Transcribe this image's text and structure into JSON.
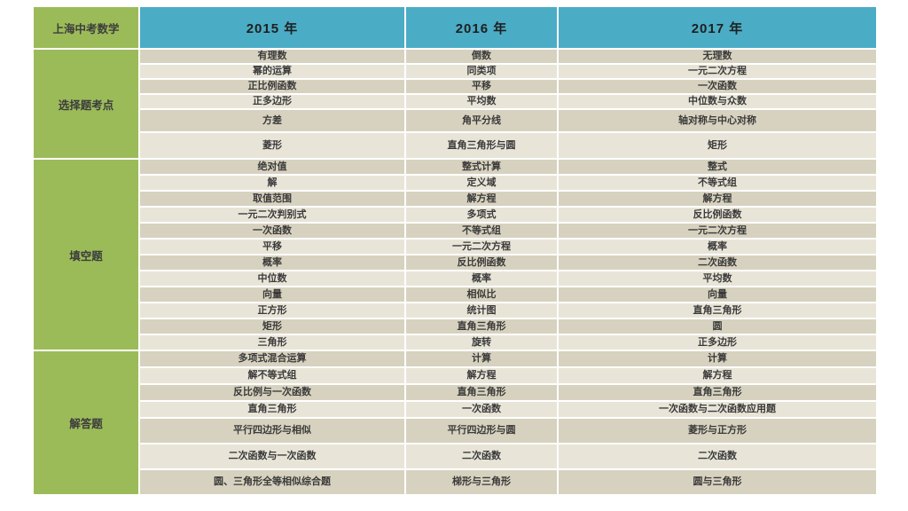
{
  "table": {
    "corner_label": "上海中考数学",
    "years": [
      "2015 年",
      "2016 年",
      "2017 年"
    ],
    "colors": {
      "header_bg": "#4bacc6",
      "label_bg": "#9bbb59",
      "row_dark": "#d7d2bf",
      "row_light": "#e8e5d8"
    },
    "sections": [
      {
        "label": "选择题考点",
        "rows": [
          [
            "有理数",
            "倒数",
            "无理数"
          ],
          [
            "幂的运算",
            "同类项",
            "一元二次方程"
          ],
          [
            "正比例函数",
            "平移",
            "一次函数"
          ],
          [
            "正多边形",
            "平均数",
            "中位数与众数"
          ],
          [
            "方差",
            "角平分线",
            "轴对称与中心对称"
          ],
          [
            "菱形",
            "直角三角形与圆",
            "矩形"
          ]
        ]
      },
      {
        "label": "填空题",
        "rows": [
          [
            "绝对值",
            "整式计算",
            "整式"
          ],
          [
            "解",
            "定义域",
            "不等式组"
          ],
          [
            "取值范围",
            "解方程",
            "解方程"
          ],
          [
            "一元二次判别式",
            "多项式",
            "反比例函数"
          ],
          [
            "一次函数",
            "不等式组",
            "一元二次方程"
          ],
          [
            "平移",
            "一元二次方程",
            "概率"
          ],
          [
            "概率",
            "反比例函数",
            "二次函数"
          ],
          [
            "中位数",
            "概率",
            "平均数"
          ],
          [
            "向量",
            "相似比",
            "向量"
          ],
          [
            "正方形",
            "统计图",
            "直角三角形"
          ],
          [
            "矩形",
            "直角三角形",
            "圆"
          ],
          [
            "三角形",
            "旋转",
            "正多边形"
          ]
        ]
      },
      {
        "label": "解答题",
        "rows": [
          [
            "多项式混合运算",
            "计算",
            "计算"
          ],
          [
            "解不等式组",
            "解方程",
            "解方程"
          ],
          [
            "反比例与一次函数",
            "直角三角形",
            "直角三角形"
          ],
          [
            "直角三角形",
            "一次函数",
            "一次函数与二次函数应用题"
          ],
          [
            "平行四边形与相似",
            "平行四边形与圆",
            "菱形与正方形"
          ],
          [
            "二次函数与一次函数",
            "二次函数",
            "二次函数"
          ],
          [
            "圆、三角形全等相似综合题",
            "梯形与三角形",
            "圆与三角形"
          ]
        ]
      }
    ]
  }
}
